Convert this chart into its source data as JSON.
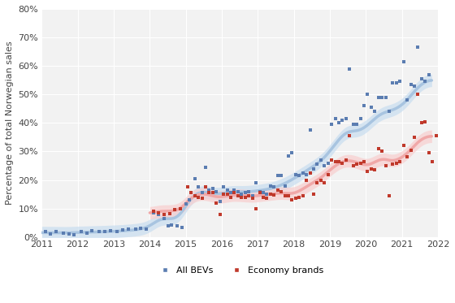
{
  "ylabel": "Percentage of total Norwegian sales",
  "xlim": [
    2011,
    2022
  ],
  "ylim": [
    0,
    0.8
  ],
  "yticks": [
    0,
    0.1,
    0.2,
    0.3,
    0.4,
    0.5,
    0.6,
    0.7,
    0.8
  ],
  "ytick_labels": [
    "0%",
    "10%",
    "20%",
    "30%",
    "40%",
    "50%",
    "60%",
    "70%",
    "80%"
  ],
  "xticks": [
    2011,
    2012,
    2013,
    2014,
    2015,
    2016,
    2017,
    2018,
    2019,
    2020,
    2021,
    2022
  ],
  "background_color": "#ffffff",
  "plot_bg_color": "#f2f2f2",
  "grid_color": "#ffffff",
  "bev_dot_color": "#5b7db1",
  "economy_dot_color": "#c0392b",
  "bev_line_color": "#a8c4e0",
  "bev_band_color": "#c8ddf0",
  "economy_line_color": "#f0a8a8",
  "economy_band_color": "#f8cece",
  "bev_scatter": [
    [
      2011.1,
      0.02
    ],
    [
      2011.25,
      0.012
    ],
    [
      2011.4,
      0.018
    ],
    [
      2011.6,
      0.015
    ],
    [
      2011.75,
      0.01
    ],
    [
      2011.9,
      0.008
    ],
    [
      2012.1,
      0.018
    ],
    [
      2012.25,
      0.015
    ],
    [
      2012.4,
      0.022
    ],
    [
      2012.6,
      0.019
    ],
    [
      2012.75,
      0.02
    ],
    [
      2012.9,
      0.021
    ],
    [
      2013.1,
      0.02
    ],
    [
      2013.25,
      0.024
    ],
    [
      2013.4,
      0.028
    ],
    [
      2013.6,
      0.027
    ],
    [
      2013.75,
      0.031
    ],
    [
      2013.9,
      0.028
    ],
    [
      2014.1,
      0.085
    ],
    [
      2014.25,
      0.078
    ],
    [
      2014.4,
      0.065
    ],
    [
      2014.5,
      0.04
    ],
    [
      2014.6,
      0.042
    ],
    [
      2014.75,
      0.038
    ],
    [
      2014.9,
      0.035
    ],
    [
      2015.0,
      0.115
    ],
    [
      2015.1,
      0.13
    ],
    [
      2015.25,
      0.205
    ],
    [
      2015.35,
      0.175
    ],
    [
      2015.45,
      0.155
    ],
    [
      2015.55,
      0.245
    ],
    [
      2015.65,
      0.165
    ],
    [
      2015.75,
      0.17
    ],
    [
      2015.85,
      0.16
    ],
    [
      2015.95,
      0.125
    ],
    [
      2016.05,
      0.175
    ],
    [
      2016.15,
      0.165
    ],
    [
      2016.25,
      0.155
    ],
    [
      2016.35,
      0.165
    ],
    [
      2016.45,
      0.16
    ],
    [
      2016.55,
      0.15
    ],
    [
      2016.65,
      0.155
    ],
    [
      2016.75,
      0.16
    ],
    [
      2016.85,
      0.145
    ],
    [
      2016.95,
      0.19
    ],
    [
      2017.05,
      0.16
    ],
    [
      2017.15,
      0.155
    ],
    [
      2017.25,
      0.15
    ],
    [
      2017.35,
      0.18
    ],
    [
      2017.45,
      0.175
    ],
    [
      2017.55,
      0.215
    ],
    [
      2017.65,
      0.215
    ],
    [
      2017.75,
      0.18
    ],
    [
      2017.85,
      0.285
    ],
    [
      2017.95,
      0.295
    ],
    [
      2018.05,
      0.22
    ],
    [
      2018.15,
      0.215
    ],
    [
      2018.25,
      0.225
    ],
    [
      2018.35,
      0.22
    ],
    [
      2018.45,
      0.375
    ],
    [
      2018.55,
      0.24
    ],
    [
      2018.65,
      0.255
    ],
    [
      2018.75,
      0.27
    ],
    [
      2018.85,
      0.25
    ],
    [
      2018.95,
      0.26
    ],
    [
      2019.05,
      0.395
    ],
    [
      2019.15,
      0.415
    ],
    [
      2019.25,
      0.4
    ],
    [
      2019.35,
      0.41
    ],
    [
      2019.45,
      0.415
    ],
    [
      2019.55,
      0.59
    ],
    [
      2019.65,
      0.395
    ],
    [
      2019.75,
      0.395
    ],
    [
      2019.85,
      0.415
    ],
    [
      2019.95,
      0.46
    ],
    [
      2020.05,
      0.5
    ],
    [
      2020.15,
      0.455
    ],
    [
      2020.25,
      0.44
    ],
    [
      2020.35,
      0.49
    ],
    [
      2020.45,
      0.49
    ],
    [
      2020.55,
      0.49
    ],
    [
      2020.65,
      0.44
    ],
    [
      2020.75,
      0.54
    ],
    [
      2020.85,
      0.54
    ],
    [
      2020.95,
      0.545
    ],
    [
      2021.05,
      0.615
    ],
    [
      2021.15,
      0.48
    ],
    [
      2021.25,
      0.535
    ],
    [
      2021.35,
      0.53
    ],
    [
      2021.45,
      0.665
    ],
    [
      2021.55,
      0.555
    ],
    [
      2021.65,
      0.545
    ],
    [
      2021.75,
      0.57
    ]
  ],
  "economy_scatter": [
    [
      2014.1,
      0.09
    ],
    [
      2014.25,
      0.085
    ],
    [
      2014.4,
      0.08
    ],
    [
      2014.55,
      0.082
    ],
    [
      2014.7,
      0.095
    ],
    [
      2014.85,
      0.1
    ],
    [
      2015.05,
      0.175
    ],
    [
      2015.15,
      0.155
    ],
    [
      2015.25,
      0.145
    ],
    [
      2015.35,
      0.14
    ],
    [
      2015.45,
      0.135
    ],
    [
      2015.55,
      0.175
    ],
    [
      2015.65,
      0.155
    ],
    [
      2015.75,
      0.155
    ],
    [
      2015.85,
      0.12
    ],
    [
      2015.95,
      0.08
    ],
    [
      2016.05,
      0.15
    ],
    [
      2016.15,
      0.15
    ],
    [
      2016.25,
      0.14
    ],
    [
      2016.35,
      0.155
    ],
    [
      2016.45,
      0.145
    ],
    [
      2016.55,
      0.138
    ],
    [
      2016.65,
      0.14
    ],
    [
      2016.75,
      0.145
    ],
    [
      2016.85,
      0.135
    ],
    [
      2016.95,
      0.1
    ],
    [
      2017.05,
      0.155
    ],
    [
      2017.15,
      0.14
    ],
    [
      2017.25,
      0.135
    ],
    [
      2017.35,
      0.15
    ],
    [
      2017.45,
      0.148
    ],
    [
      2017.55,
      0.165
    ],
    [
      2017.65,
      0.16
    ],
    [
      2017.75,
      0.145
    ],
    [
      2017.85,
      0.145
    ],
    [
      2017.95,
      0.13
    ],
    [
      2018.05,
      0.135
    ],
    [
      2018.15,
      0.14
    ],
    [
      2018.25,
      0.145
    ],
    [
      2018.35,
      0.2
    ],
    [
      2018.45,
      0.225
    ],
    [
      2018.55,
      0.15
    ],
    [
      2018.65,
      0.19
    ],
    [
      2018.75,
      0.2
    ],
    [
      2018.85,
      0.19
    ],
    [
      2018.95,
      0.22
    ],
    [
      2019.05,
      0.27
    ],
    [
      2019.15,
      0.265
    ],
    [
      2019.25,
      0.265
    ],
    [
      2019.35,
      0.26
    ],
    [
      2019.45,
      0.27
    ],
    [
      2019.55,
      0.355
    ],
    [
      2019.65,
      0.25
    ],
    [
      2019.75,
      0.255
    ],
    [
      2019.85,
      0.26
    ],
    [
      2019.95,
      0.265
    ],
    [
      2020.05,
      0.23
    ],
    [
      2020.15,
      0.24
    ],
    [
      2020.25,
      0.235
    ],
    [
      2020.35,
      0.31
    ],
    [
      2020.45,
      0.3
    ],
    [
      2020.55,
      0.25
    ],
    [
      2020.65,
      0.145
    ],
    [
      2020.75,
      0.255
    ],
    [
      2020.85,
      0.26
    ],
    [
      2020.95,
      0.265
    ],
    [
      2021.05,
      0.32
    ],
    [
      2021.15,
      0.28
    ],
    [
      2021.25,
      0.305
    ],
    [
      2021.35,
      0.35
    ],
    [
      2021.45,
      0.5
    ],
    [
      2021.55,
      0.4
    ],
    [
      2021.65,
      0.405
    ],
    [
      2021.75,
      0.295
    ],
    [
      2021.85,
      0.265
    ],
    [
      2021.95,
      0.355
    ]
  ],
  "bev_trend_x": [
    2011.0,
    2011.17,
    2011.33,
    2011.5,
    2011.67,
    2011.83,
    2012.0,
    2012.17,
    2012.33,
    2012.5,
    2012.67,
    2012.83,
    2013.0,
    2013.17,
    2013.33,
    2013.5,
    2013.67,
    2013.83,
    2014.0,
    2014.17,
    2014.33,
    2014.5,
    2014.67,
    2014.83,
    2015.0,
    2015.17,
    2015.33,
    2015.5,
    2015.67,
    2015.83,
    2016.0,
    2016.17,
    2016.33,
    2016.5,
    2016.67,
    2016.83,
    2017.0,
    2017.17,
    2017.33,
    2017.5,
    2017.67,
    2017.83,
    2018.0,
    2018.17,
    2018.33,
    2018.5,
    2018.67,
    2018.83,
    2019.0,
    2019.17,
    2019.33,
    2019.5,
    2019.67,
    2019.83,
    2020.0,
    2020.17,
    2020.33,
    2020.5,
    2020.67,
    2020.83,
    2021.0,
    2021.17,
    2021.33,
    2021.5,
    2021.67,
    2021.83
  ],
  "bev_trend_y": [
    0.016,
    0.015,
    0.015,
    0.015,
    0.014,
    0.014,
    0.017,
    0.016,
    0.017,
    0.018,
    0.018,
    0.019,
    0.02,
    0.021,
    0.022,
    0.024,
    0.026,
    0.028,
    0.036,
    0.055,
    0.072,
    0.063,
    0.06,
    0.065,
    0.11,
    0.148,
    0.158,
    0.162,
    0.155,
    0.148,
    0.152,
    0.158,
    0.16,
    0.158,
    0.157,
    0.16,
    0.162,
    0.165,
    0.168,
    0.175,
    0.182,
    0.192,
    0.205,
    0.218,
    0.23,
    0.245,
    0.258,
    0.272,
    0.3,
    0.33,
    0.355,
    0.38,
    0.368,
    0.37,
    0.385,
    0.405,
    0.428,
    0.44,
    0.44,
    0.448,
    0.46,
    0.48,
    0.51,
    0.535,
    0.548,
    0.558
  ],
  "economy_trend_x": [
    2014.0,
    2014.17,
    2014.33,
    2014.5,
    2014.67,
    2014.83,
    2015.0,
    2015.17,
    2015.33,
    2015.5,
    2015.67,
    2015.83,
    2016.0,
    2016.17,
    2016.33,
    2016.5,
    2016.67,
    2016.83,
    2017.0,
    2017.17,
    2017.33,
    2017.5,
    2017.67,
    2017.83,
    2018.0,
    2018.17,
    2018.33,
    2018.5,
    2018.67,
    2018.83,
    2019.0,
    2019.17,
    2019.33,
    2019.5,
    2019.67,
    2019.83,
    2020.0,
    2020.17,
    2020.33,
    2020.5,
    2020.67,
    2020.83,
    2021.0,
    2021.17,
    2021.33,
    2021.5,
    2021.67,
    2021.83
  ],
  "economy_trend_y": [
    0.082,
    0.088,
    0.092,
    0.09,
    0.092,
    0.095,
    0.118,
    0.142,
    0.15,
    0.152,
    0.148,
    0.14,
    0.14,
    0.145,
    0.148,
    0.146,
    0.145,
    0.143,
    0.145,
    0.148,
    0.15,
    0.153,
    0.155,
    0.152,
    0.152,
    0.162,
    0.175,
    0.188,
    0.2,
    0.215,
    0.235,
    0.252,
    0.265,
    0.27,
    0.265,
    0.26,
    0.248,
    0.258,
    0.268,
    0.278,
    0.265,
    0.268,
    0.278,
    0.295,
    0.318,
    0.34,
    0.352,
    0.355
  ]
}
